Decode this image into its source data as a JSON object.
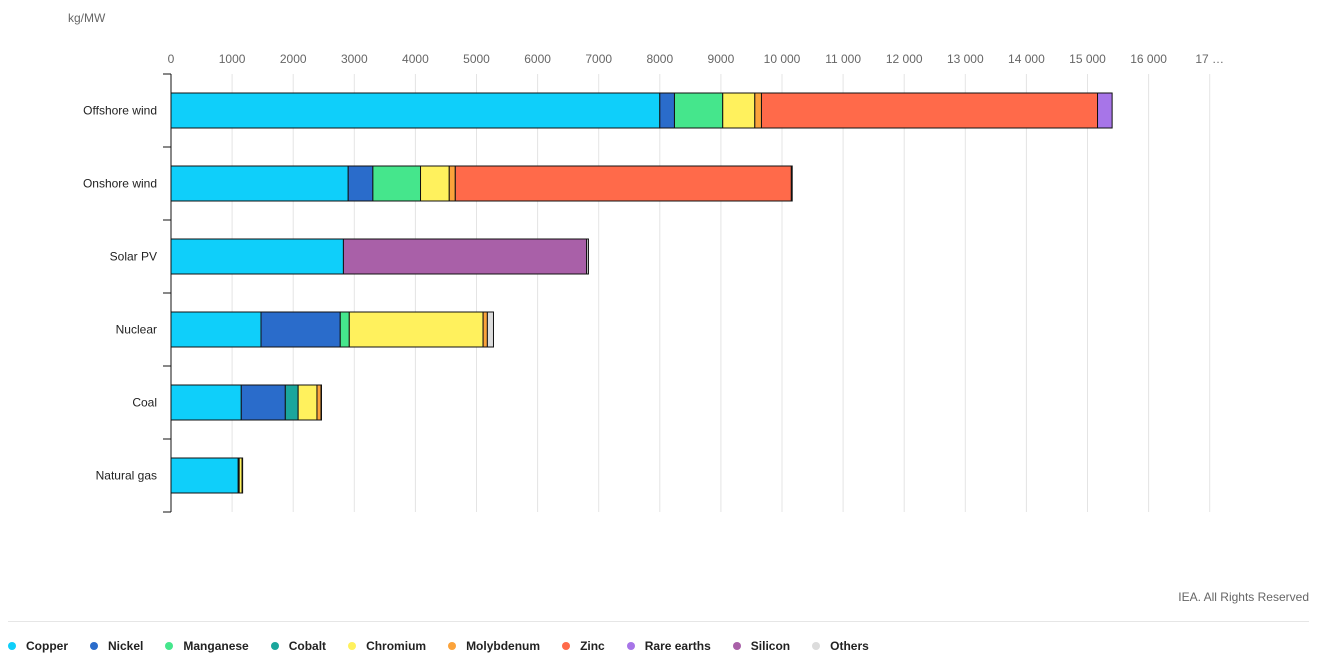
{
  "chart_data": {
    "type": "bar",
    "orientation": "horizontal",
    "stacked": true,
    "unit": "kg/MW",
    "categories": [
      "Offshore wind",
      "Onshore wind",
      "Solar PV",
      "Nuclear",
      "Coal",
      "Natural gas"
    ],
    "series": [
      {
        "name": "Copper",
        "color": "#0fcffa",
        "values": [
          8000,
          2900,
          2822,
          1473,
          1150,
          1100
        ]
      },
      {
        "name": "Nickel",
        "color": "#2a6ccb",
        "values": [
          240,
          404,
          0,
          1297,
          721,
          16
        ]
      },
      {
        "name": "Manganese",
        "color": "#45e68c",
        "values": [
          790,
          780,
          0,
          148,
          0,
          0
        ]
      },
      {
        "name": "Cobalt",
        "color": "#1aa69c",
        "values": [
          0,
          0,
          0,
          0,
          210,
          0
        ]
      },
      {
        "name": "Chromium",
        "color": "#fff15d",
        "values": [
          525,
          470,
          0,
          2190,
          308,
          48
        ]
      },
      {
        "name": "Molybdenum",
        "color": "#fba33b",
        "values": [
          109,
          99,
          0,
          70,
          66,
          0
        ]
      },
      {
        "name": "Zinc",
        "color": "#ff6a4a",
        "values": [
          5500,
          5500,
          0,
          0,
          0,
          0
        ]
      },
      {
        "name": "Rare earths",
        "color": "#a775e8",
        "values": [
          239,
          14,
          0,
          0,
          0,
          0
        ]
      },
      {
        "name": "Silicon",
        "color": "#a960a8",
        "values": [
          0,
          0,
          3980,
          0,
          0,
          0
        ]
      },
      {
        "name": "Others",
        "color": "#dcdcdc",
        "values": [
          0,
          0,
          30,
          100,
          6,
          1
        ]
      }
    ],
    "xlim": [
      0,
      17000
    ],
    "x_ticks": [
      "0",
      "1000",
      "2000",
      "3000",
      "4000",
      "5000",
      "6000",
      "7000",
      "8000",
      "9000",
      "10 000",
      "11 000",
      "12 000",
      "13 000",
      "14 000",
      "15 000",
      "16 000",
      "17 …"
    ],
    "x_tick_values": [
      0,
      1000,
      2000,
      3000,
      4000,
      5000,
      6000,
      7000,
      8000,
      9000,
      10000,
      11000,
      12000,
      13000,
      14000,
      15000,
      16000,
      17000
    ],
    "grid": true,
    "legend_position": "bottom"
  },
  "unit_label": "kg/MW",
  "credit": "IEA. All Rights Reserved"
}
